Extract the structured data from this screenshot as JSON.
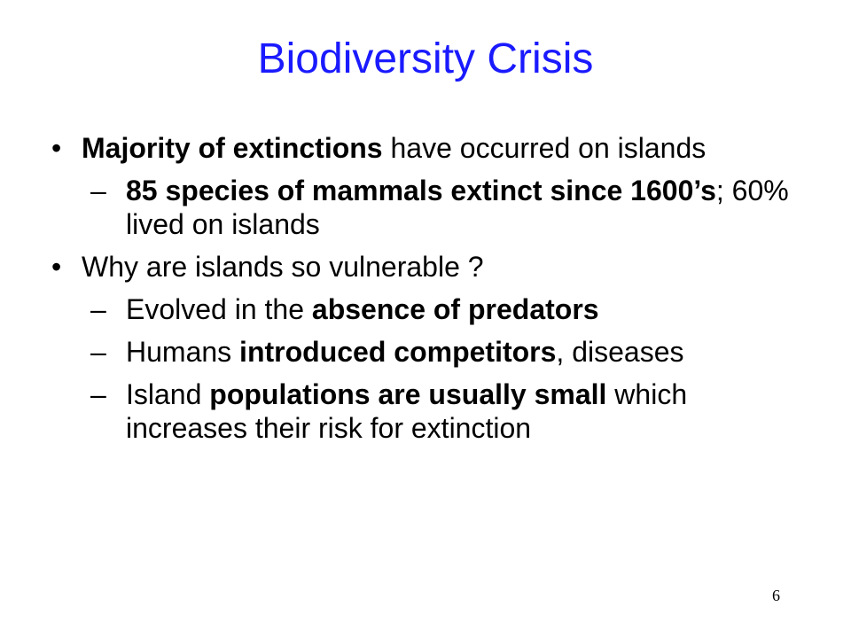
{
  "slide": {
    "title": "Biodiversity Crisis",
    "bullets": [
      {
        "level": 1,
        "marker": "•",
        "runs": [
          {
            "text": "Majority of extinctions",
            "bold": true
          },
          {
            "text": " have occurred on islands",
            "bold": false
          }
        ]
      },
      {
        "level": 2,
        "marker": "–",
        "runs": [
          {
            "text": "85 species of mammals extinct since 1600’s",
            "bold": true
          },
          {
            "text": "; 60% lived on islands",
            "bold": false
          }
        ]
      },
      {
        "level": 1,
        "marker": "•",
        "runs": [
          {
            "text": "Why are islands so vulnerable ?",
            "bold": false
          }
        ]
      },
      {
        "level": 2,
        "marker": "–",
        "runs": [
          {
            "text": "Evolved in the ",
            "bold": false
          },
          {
            "text": "absence of predators",
            "bold": true
          }
        ]
      },
      {
        "level": 2,
        "marker": "–",
        "runs": [
          {
            "text": "Humans ",
            "bold": false
          },
          {
            "text": "introduced competitors",
            "bold": true
          },
          {
            "text": ", diseases",
            "bold": false
          }
        ]
      },
      {
        "level": 2,
        "marker": "–",
        "runs": [
          {
            "text": "Island ",
            "bold": false
          },
          {
            "text": "populations are usually small",
            "bold": true
          },
          {
            "text": " which increases their risk for extinction",
            "bold": false
          }
        ]
      }
    ],
    "page_number": "6",
    "title_color": "#1a1aff"
  }
}
